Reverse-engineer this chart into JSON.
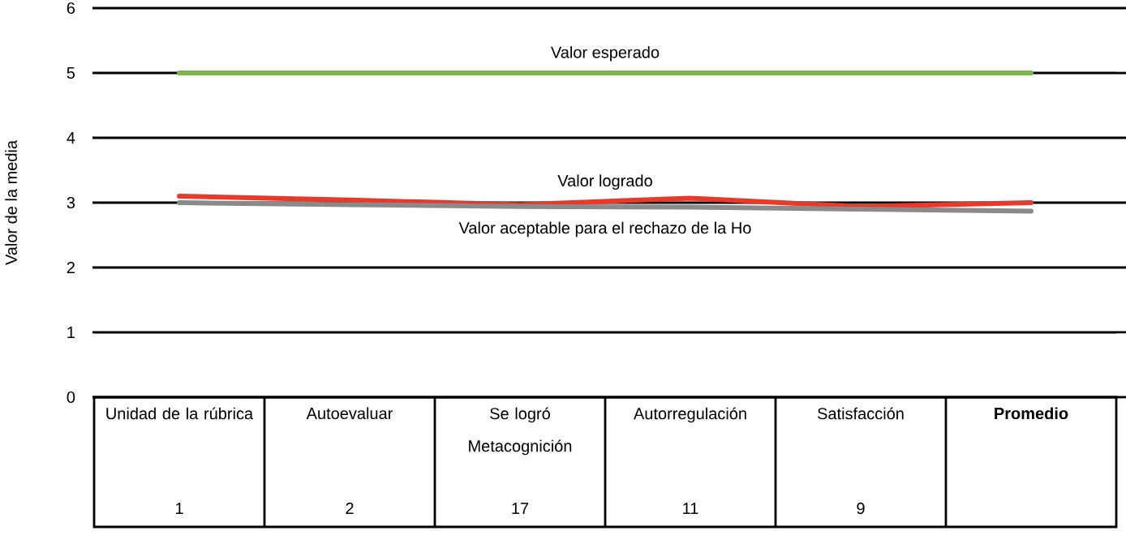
{
  "chart_data": {
    "type": "line",
    "ylabel": "Valor de la media",
    "categories": [
      "Unidad de la rúbrica",
      "Autoevaluar",
      "Se logró Metacognición",
      "Autorregulación",
      "Satisfacción",
      "Promedio"
    ],
    "series": [
      {
        "name": "Valor esperado",
        "color": "#7ab648",
        "values": [
          5,
          5,
          5,
          5,
          5,
          5
        ]
      },
      {
        "name": "Valor logrado",
        "color": "#e8392b",
        "values": [
          3.1,
          3.04,
          2.97,
          3.07,
          2.94,
          3.0
        ]
      },
      {
        "name": "Valor aceptable para el rechazo de la Ho",
        "color": "#8a8a8a",
        "values": [
          3.0,
          2.97,
          2.94,
          2.93,
          2.9,
          2.87
        ]
      }
    ],
    "ylim": [
      0,
      6
    ],
    "yticks": [
      0,
      1,
      2,
      3,
      4,
      5,
      6
    ],
    "grid": "y",
    "marker": "none",
    "line_style": "solid",
    "annotations": [
      "1",
      "2",
      "17",
      "11",
      "9"
    ]
  }
}
